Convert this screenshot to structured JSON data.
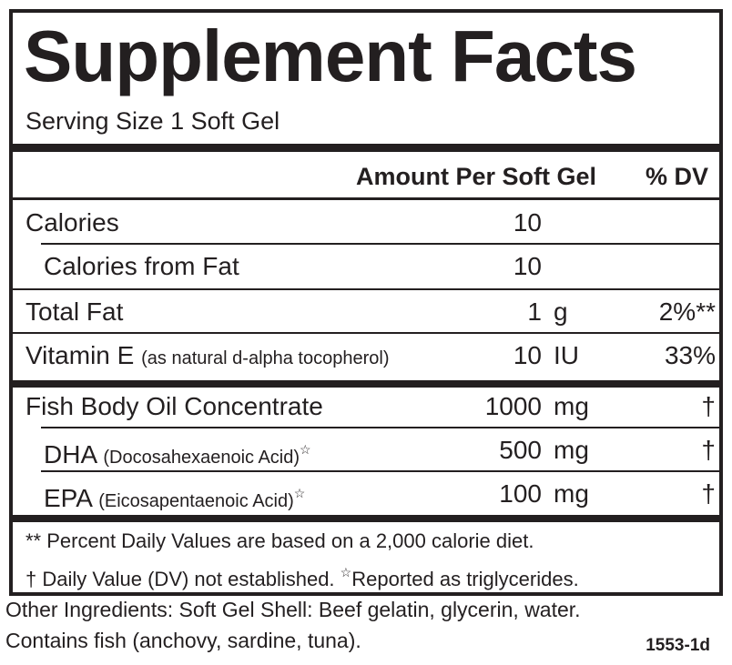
{
  "header": {
    "title": "Supplement Facts",
    "serving_size": "Serving Size 1 Soft Gel"
  },
  "table": {
    "columns": [
      "Amount Per Soft Gel",
      "% DV"
    ],
    "rows": [
      {
        "name": "Calories",
        "amount": 10
      },
      {
        "name": "Calories from Fat",
        "amount": 10
      },
      {
        "name": "Total Fat",
        "amount": 1,
        "unit": "g",
        "dv": "2%**"
      },
      {
        "name": "Vitamin E",
        "detail": "(as natural d-alpha tocopherol)",
        "amount": 10,
        "unit": "IU",
        "dv": "33%"
      },
      {
        "name": "Fish Body Oil Concentrate",
        "amount": 1000,
        "unit": "mg",
        "dv": "†"
      },
      {
        "name": "DHA",
        "detail": "(Docosahexaenoic Acid)",
        "marker": "☆",
        "amount": 500,
        "unit": "mg",
        "dv": "†"
      },
      {
        "name": "EPA",
        "detail": "(Eicosapentaenoic Acid)",
        "marker": "☆",
        "amount": 100,
        "unit": "mg",
        "dv": "†"
      }
    ]
  },
  "footnotes": {
    "percent": "** Percent Daily Values are based on a 2,000 calorie diet.",
    "dagger": "† Daily Value (DV) not established.",
    "star_marker": "☆",
    "star_note": "Reported as triglycerides."
  },
  "other_ingredients": [
    "Other Ingredients: Soft Gel Shell: Beef gelatin, glycerin, water.",
    "Contains fish (anchovy, sardine, tuna)."
  ],
  "code": "1553-1d"
}
